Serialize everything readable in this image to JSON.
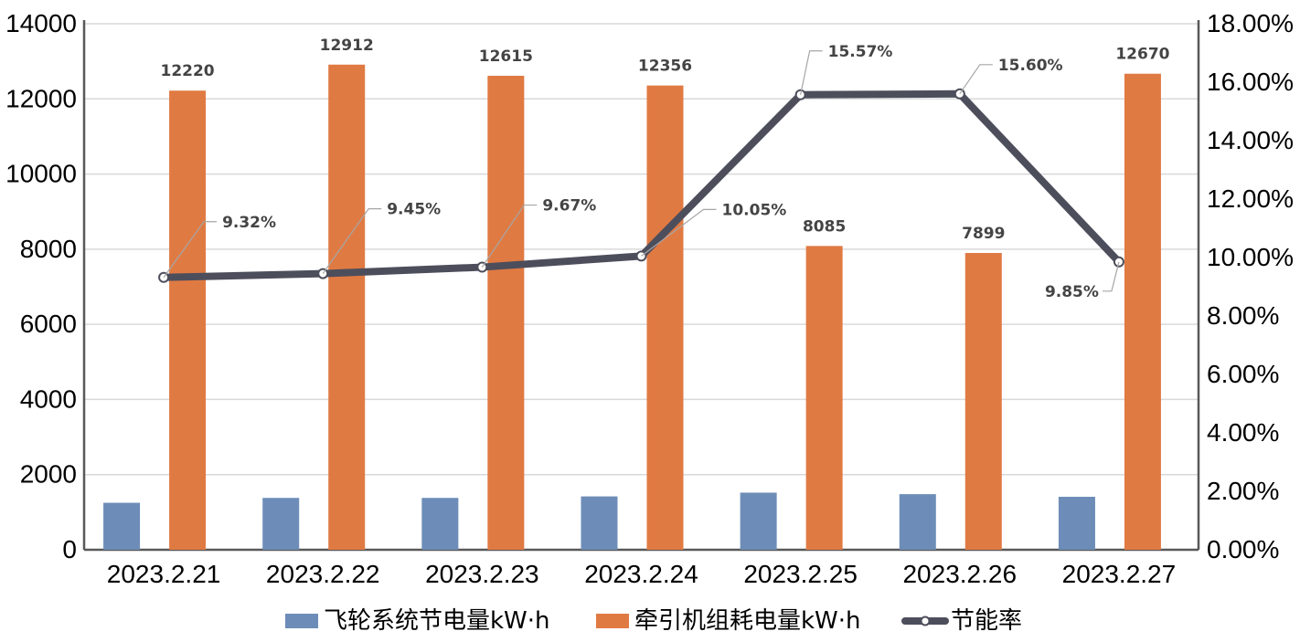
{
  "chart_data": {
    "type": "bar",
    "categories": [
      "2023.2.21",
      "2023.2.22",
      "2023.2.23",
      "2023.2.24",
      "2023.2.25",
      "2023.2.26",
      "2023.2.27"
    ],
    "series": [
      {
        "name": "飞轮系统节电量kW·h",
        "kind": "bar",
        "axis": "left",
        "color": "#6d8db8",
        "values": [
          1250,
          1380,
          1380,
          1420,
          1520,
          1480,
          1410
        ]
      },
      {
        "name": "牵引机组耗电量kW·h",
        "kind": "bar",
        "axis": "left",
        "color": "#e07a43",
        "values": [
          12220,
          12912,
          12615,
          12356,
          8085,
          7899,
          12670
        ],
        "labels": [
          "12220",
          "12912",
          "12615",
          "12356",
          "8085",
          "7899",
          "12670"
        ]
      },
      {
        "name": "节能率",
        "kind": "line",
        "axis": "right",
        "color": "#4d4e5c",
        "values": [
          9.32,
          9.45,
          9.67,
          10.05,
          15.57,
          15.6,
          9.85
        ],
        "labels": [
          "9.32%",
          "9.45%",
          "9.67%",
          "10.05%",
          "15.57%",
          "15.60%",
          "9.85%"
        ]
      }
    ],
    "y_left": {
      "lim": [
        0,
        14000
      ],
      "ticks": [
        "0",
        "2000",
        "4000",
        "6000",
        "8000",
        "10000",
        "12000",
        "14000"
      ]
    },
    "y_right": {
      "lim": [
        0,
        18
      ],
      "ticks": [
        "0.00%",
        "2.00%",
        "4.00%",
        "6.00%",
        "8.00%",
        "10.00%",
        "12.00%",
        "14.00%",
        "16.00%",
        "18.00%"
      ]
    },
    "grid": true,
    "legend_position": "bottom",
    "title": "",
    "xlabel": "",
    "ylabel": ""
  }
}
